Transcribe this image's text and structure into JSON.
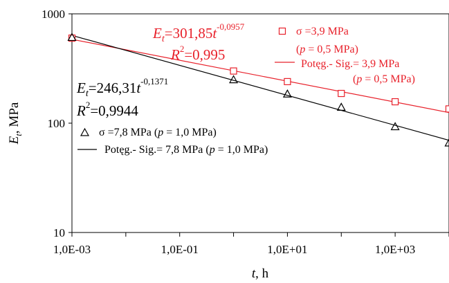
{
  "chart_data": {
    "type": "scatter",
    "title": "",
    "xlabel_main": "t",
    "xlabel_unit": ", h",
    "ylabel_main": "E",
    "ylabel_sub": "t",
    "ylabel_unit": ", MPa",
    "x_scale": "log",
    "y_scale": "log",
    "xlim": [
      0.001,
      10000
    ],
    "ylim": [
      10,
      1000
    ],
    "x_ticks": [
      0.001,
      0.1,
      10,
      1000
    ],
    "x_tick_labels": [
      "1,0E-03",
      "1,0E-01",
      "1,0E+01",
      "1,0E+03"
    ],
    "y_ticks": [
      10,
      100,
      1000
    ],
    "y_tick_labels": [
      "10",
      "100",
      "1000"
    ],
    "grid": false,
    "series": [
      {
        "name": "σ =3,9 MPa (p = 0,5 MPa)",
        "marker": "square",
        "color": "#e8202a",
        "x": [
          0.001,
          1,
          10,
          100,
          1000,
          10000
        ],
        "y": [
          600,
          300,
          240,
          187,
          157,
          135
        ]
      },
      {
        "name": "σ =7,8 MPa (p = 1,0 MPa)",
        "marker": "triangle",
        "color": "#000000",
        "x": [
          0.001,
          1,
          10,
          100,
          1000,
          10000
        ],
        "y": [
          610,
          250,
          185,
          140,
          93,
          66
        ]
      }
    ],
    "fits": [
      {
        "name": "Potęg.- Sig.= 3,9 MPa (p = 0,5 MPa)",
        "color": "#e8202a",
        "coef": 301.85,
        "exponent": -0.0957,
        "eq_coef_text": "301,85",
        "eq_exp_text": "-0,0957",
        "r2_text": "=0,995"
      },
      {
        "name": "Potęg.- Sig.= 7,8 MPa (p = 1,0 MPa)",
        "color": "#000000",
        "coef": 246.31,
        "exponent": -0.1371,
        "eq_coef_text": "246,31",
        "eq_exp_text": "-0,1371",
        "r2_text": "=0,9944"
      }
    ],
    "legend": {
      "red_marker": {
        "pre": "σ =3,9 MPa",
        "line2": "(",
        "p": "p",
        "post": " = 0,5 MPa)"
      },
      "red_line": {
        "pre": "Potęg.- Sig.= 3,9 MPa",
        "line2": "(",
        "p": "p",
        "post": " = 0,5 MPa)"
      },
      "black_marker": {
        "pre": "σ =7,8 MPa (",
        "p": "p",
        "post": " = 1,0 MPa)"
      },
      "black_line": {
        "pre": "Potęg.- Sig.= 7,8 MPa (",
        "p": "p",
        "post": " = 1,0 MPa)"
      }
    },
    "equation_symbols": {
      "E": "E",
      "t_sub": "t",
      "eq_sign": "=",
      "t": "t",
      "R": "R",
      "r2_sup": "2"
    }
  }
}
